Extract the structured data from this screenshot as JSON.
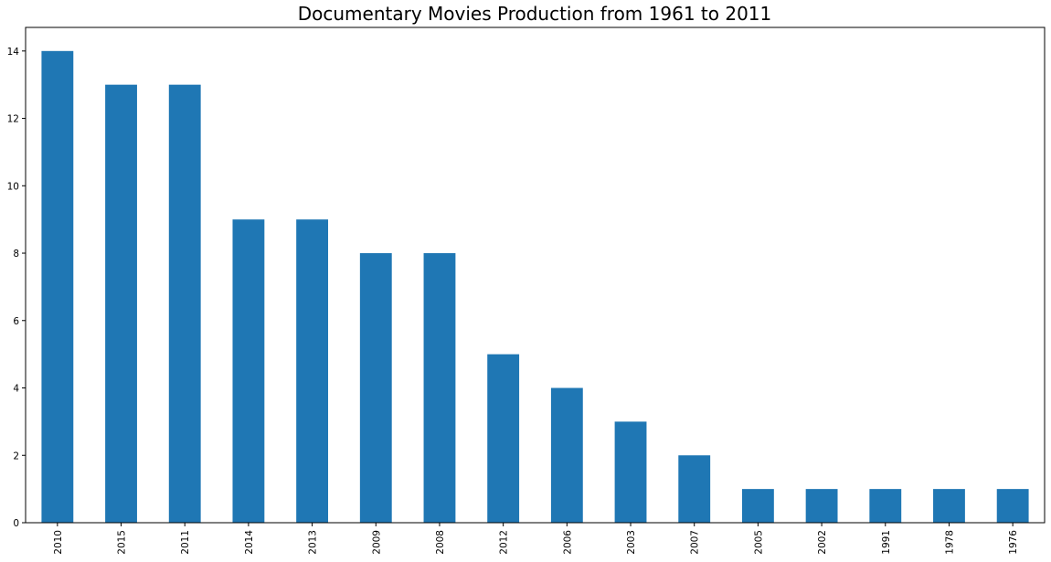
{
  "chart_data": {
    "type": "bar",
    "title": "Documentary Movies Production from 1961 to 2011",
    "xlabel": "",
    "ylabel": "",
    "categories": [
      "2010",
      "2015",
      "2011",
      "2014",
      "2013",
      "2009",
      "2008",
      "2012",
      "2006",
      "2003",
      "2007",
      "2005",
      "2002",
      "1991",
      "1978",
      "1976"
    ],
    "values": [
      14,
      13,
      13,
      9,
      9,
      8,
      8,
      5,
      4,
      3,
      2,
      1,
      1,
      1,
      1,
      1
    ],
    "ylim": [
      0,
      14.7
    ],
    "yticks": [
      0,
      2,
      4,
      6,
      8,
      10,
      12,
      14
    ],
    "grid": false,
    "bar_color": "#1f77b4"
  }
}
